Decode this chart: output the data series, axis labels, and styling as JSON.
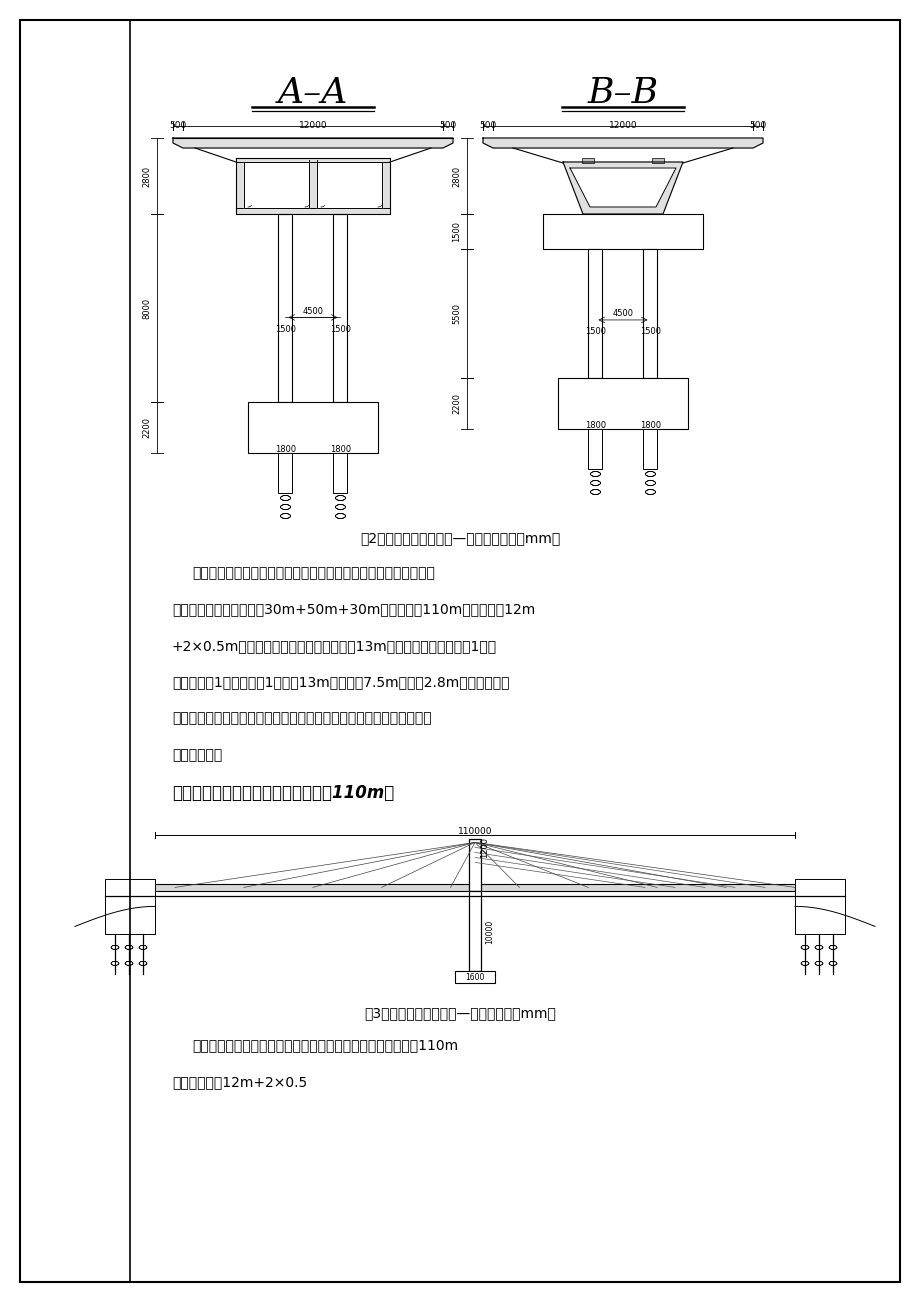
{
  "page_bg": "#ffffff",
  "title_AA": "A–A",
  "title_BB": "B–B",
  "caption_fig2": "图2：方案一桥型布置图—横断面（单位：mm）",
  "para1_line1": "桥型方案说明：本桥型方案采用一联三跨的等高变截面预应力混凝",
  "para1_line2": "土连续结构，桥跨布置为30m+50m+30m，桥梁全长110m，桥面净宽12m",
  "para1_line3": "+2×0.5m（防撞护栏，无人行道），总宽13m，横截面布置采用单符1双室",
  "para1_line4": "双悬臂的符1形截面，符1梁顶宽13m，底板剹7.5m，梁高2.8m。桥台采用双",
  "para1_line5": "肘板桥台，桥墩采用双柱式柱式桥墩，采用满堂支架现浇法施工。具体",
  "para1_line6": "如上图所示。",
  "section2_title": "方案二：独塔双索面混凝土斜拉桥（110m）",
  "caption_fig3": "图3：方案二桥型布置图—立面（单位：mm）",
  "para2_line1": "桥型方案说明：本桥型方案采用独塔双索面斜拉桥，桥梁全长110m",
  "para2_line2": "，桥面净空为12m+2×0.5"
}
